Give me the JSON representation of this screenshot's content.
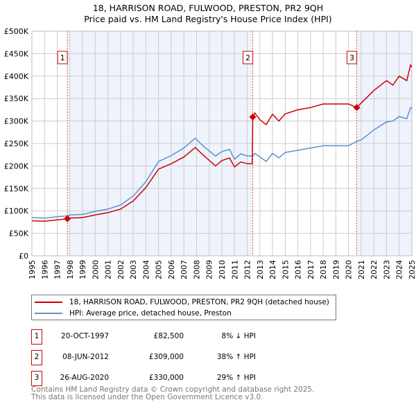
{
  "chart_data": {
    "type": "line",
    "title": "18, HARRISON ROAD, FULWOOD, PRESTON, PR2 9QH",
    "subtitle": "Price paid vs. HM Land Registry's House Price Index (HPI)",
    "xlim": [
      1995,
      2025
    ],
    "ylim": [
      0,
      500000
    ],
    "yticks": [
      0,
      50000,
      100000,
      150000,
      200000,
      250000,
      300000,
      350000,
      400000,
      450000,
      500000
    ],
    "ytick_labels": [
      "£0",
      "£50K",
      "£100K",
      "£150K",
      "£200K",
      "£250K",
      "£300K",
      "£350K",
      "£400K",
      "£450K",
      "£500K"
    ],
    "xticks": [
      "1995",
      "1996",
      "1997",
      "1998",
      "1999",
      "2000",
      "2001",
      "2002",
      "2003",
      "2004",
      "2005",
      "2006",
      "2007",
      "2008",
      "2009",
      "2010",
      "2011",
      "2012",
      "2013",
      "2014",
      "2015",
      "2016",
      "2017",
      "2018",
      "2019",
      "2020",
      "2021",
      "2022",
      "2023",
      "2024",
      "2025"
    ],
    "grid": true,
    "series": [
      {
        "name": "18, HARRISON ROAD, FULWOOD, PRESTON, PR2 9QH (detached house)",
        "color": "#cc0000",
        "x": [
          1995,
          1996,
          1997,
          1997.8,
          1998,
          1999,
          2000,
          2001,
          2002,
          2003,
          2004,
          2005,
          2006,
          2007,
          2007.9,
          2008.5,
          2009.5,
          2010,
          2010.6,
          2011,
          2011.5,
          2012,
          2012.4,
          2012.44,
          2012.6,
          2013,
          2013.5,
          2014,
          2014.5,
          2015,
          2016,
          2017,
          2018,
          2019,
          2020,
          2020.65,
          2021,
          2022,
          2023,
          2023.5,
          2024,
          2024.6,
          2024.9,
          2025
        ],
        "values": [
          78000,
          77000,
          80000,
          82500,
          84000,
          85000,
          91000,
          96000,
          104000,
          122000,
          152000,
          193000,
          205000,
          220000,
          241000,
          225000,
          200000,
          212000,
          218000,
          198000,
          209000,
          205000,
          205000,
          309000,
          318000,
          303000,
          292000,
          315000,
          300000,
          316000,
          325000,
          330000,
          338000,
          338000,
          338000,
          330000,
          340000,
          368000,
          390000,
          380000,
          400000,
          390000,
          425000,
          420000
        ]
      },
      {
        "name": "HPI: Average price, detached house, Preston",
        "color": "#5b8fd4",
        "x": [
          1995,
          1996,
          1997,
          1997.8,
          1998,
          1999,
          2000,
          2001,
          2002,
          2003,
          2004,
          2005,
          2006,
          2007,
          2007.9,
          2008.5,
          2009.5,
          2010,
          2010.6,
          2011,
          2011.5,
          2012,
          2012.4,
          2012.44,
          2012.6,
          2013,
          2013.5,
          2014,
          2014.5,
          2015,
          2016,
          2017,
          2018,
          2019,
          2020,
          2020.65,
          2021,
          2022,
          2023,
          2023.5,
          2024,
          2024.6,
          2024.9,
          2025
        ],
        "values": [
          85000,
          84000,
          87000,
          89000,
          91000,
          92000,
          99000,
          104000,
          113000,
          133000,
          165000,
          210000,
          223000,
          240000,
          262000,
          245000,
          222000,
          232000,
          237000,
          215000,
          227000,
          222000,
          222000,
          222000,
          228000,
          220000,
          210000,
          228000,
          218000,
          230000,
          235000,
          240000,
          245000,
          245000,
          245000,
          255000,
          258000,
          280000,
          298000,
          300000,
          310000,
          305000,
          330000,
          328000
        ]
      }
    ],
    "sales": [
      {
        "label": "1",
        "x": 1997.8,
        "date": "20-OCT-1997",
        "price": 82500,
        "price_text": "£82,500",
        "hpi_text": "8% ↓ HPI"
      },
      {
        "label": "2",
        "x": 2012.44,
        "date": "08-JUN-2012",
        "price": 309000,
        "price_text": "£309,000",
        "hpi_text": "38% ↑ HPI"
      },
      {
        "label": "3",
        "x": 2020.65,
        "date": "26-AUG-2020",
        "price": 330000,
        "price_text": "£330,000",
        "hpi_text": "29% ↑ HPI"
      }
    ],
    "legend_position": "below"
  },
  "footer": {
    "line1": "Contains HM Land Registry data © Crown copyright and database right 2025.",
    "line2": "This data is licensed under the Open Government Licence v3.0."
  }
}
